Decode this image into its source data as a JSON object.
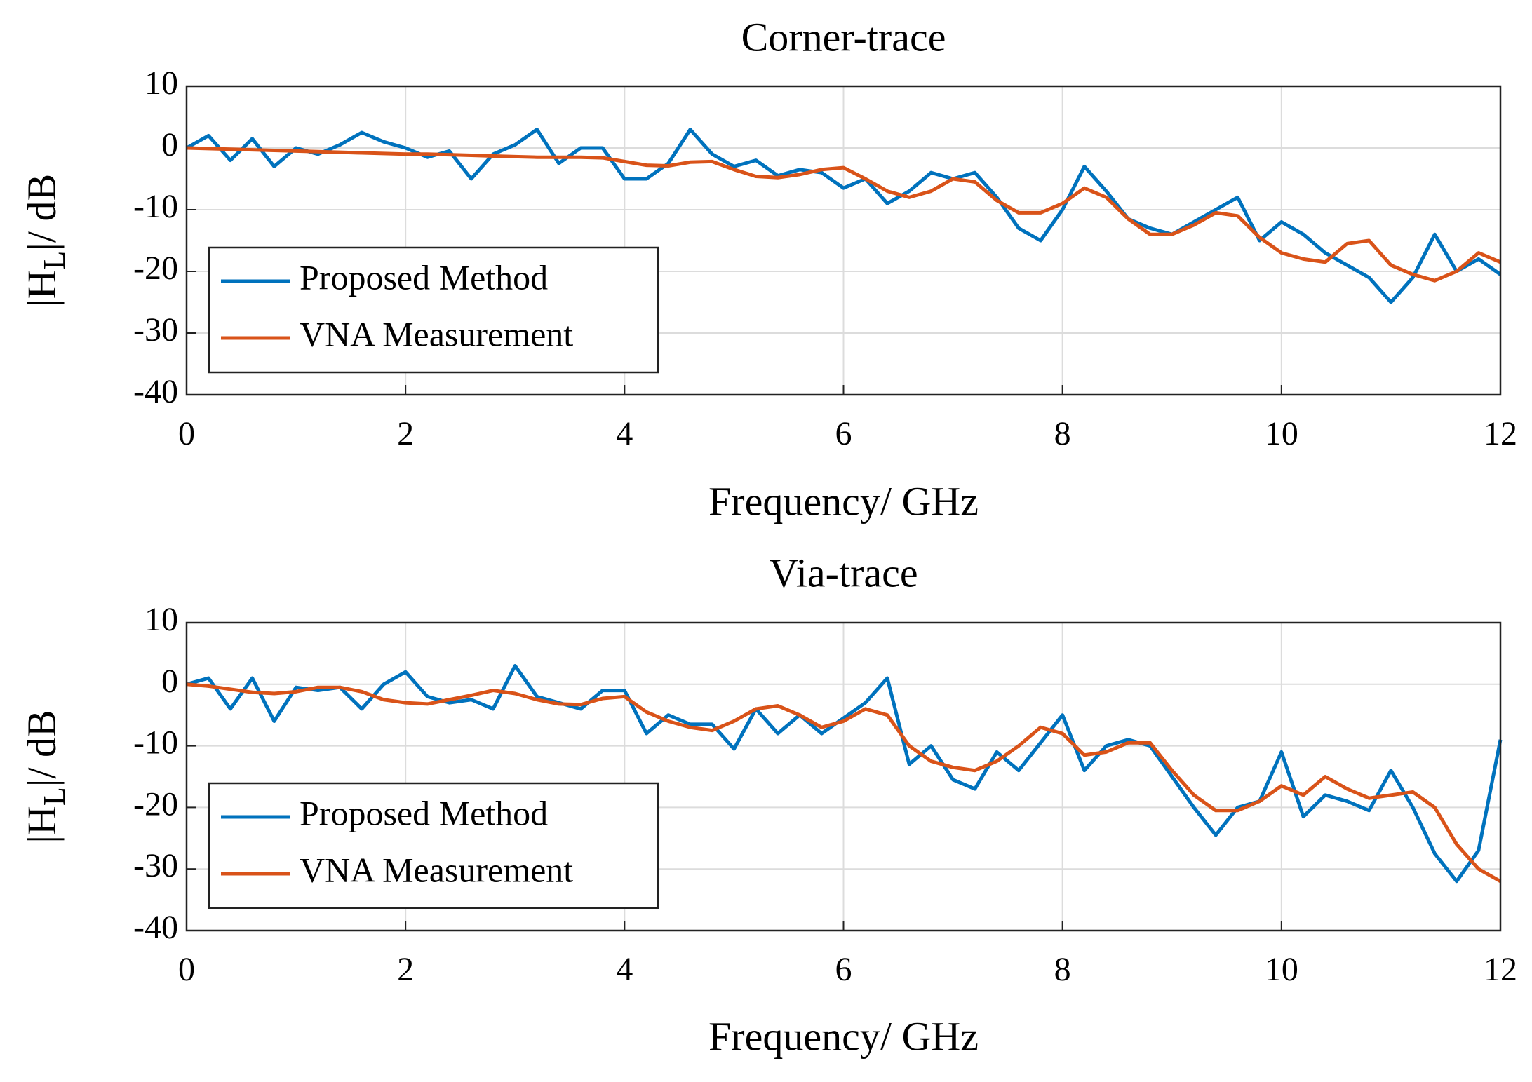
{
  "chart_data": [
    {
      "type": "line",
      "title": "Corner-trace",
      "xlabel": "Frequency/ GHz",
      "ylabel": {
        "main": "|H",
        "sub": "L",
        "rest": "|/ dB"
      },
      "x": [
        0,
        0.2,
        0.4,
        0.6,
        0.8,
        1,
        1.2,
        1.4,
        1.6,
        1.8,
        2,
        2.2,
        2.4,
        2.6,
        2.8,
        3,
        3.2,
        3.4,
        3.6,
        3.8,
        4,
        4.2,
        4.4,
        4.6,
        4.8,
        5,
        5.2,
        5.4,
        5.6,
        5.8,
        6,
        6.2,
        6.4,
        6.6,
        6.8,
        7,
        7.2,
        7.4,
        7.6,
        7.8,
        8,
        8.2,
        8.4,
        8.6,
        8.8,
        9,
        9.2,
        9.4,
        9.6,
        9.8,
        10,
        10.2,
        10.4,
        10.6,
        10.8,
        11,
        11.2,
        11.4,
        11.6,
        11.8,
        12
      ],
      "series": [
        {
          "name": "Proposed Method",
          "color": "#0072BD",
          "values": [
            0,
            2,
            -2,
            1.5,
            -3,
            0,
            -1,
            0.5,
            2.5,
            1,
            0,
            -1.5,
            -0.5,
            -5,
            -1,
            0.5,
            3,
            -2.5,
            0,
            0,
            -5,
            -5,
            -2.5,
            3,
            -1,
            -3,
            -2,
            -4.5,
            -3.5,
            -4,
            -6.5,
            -5,
            -9,
            -7,
            -4,
            -5,
            -4,
            -8,
            -13,
            -15,
            -10,
            -3,
            -7,
            -11.5,
            -13,
            -14,
            -12,
            -10,
            -8,
            -15,
            -12,
            -14,
            -17,
            -19,
            -21,
            -25,
            -21,
            -14,
            -20,
            -18,
            -20.5
          ]
        },
        {
          "name": "VNA Measurement",
          "color": "#D95319",
          "values": [
            0,
            -0.1,
            -0.2,
            -0.3,
            -0.4,
            -0.5,
            -0.6,
            -0.7,
            -0.8,
            -0.9,
            -1,
            -1,
            -1.1,
            -1.2,
            -1.3,
            -1.4,
            -1.5,
            -1.5,
            -1.5,
            -1.6,
            -2.2,
            -2.8,
            -2.9,
            -2.3,
            -2.2,
            -3.5,
            -4.6,
            -4.8,
            -4.3,
            -3.5,
            -3.2,
            -5,
            -7,
            -8,
            -7,
            -5,
            -5.5,
            -8.5,
            -10.5,
            -10.5,
            -9,
            -6.5,
            -8,
            -11.5,
            -14,
            -14,
            -12.5,
            -10.5,
            -11,
            -14.5,
            -17,
            -18,
            -18.5,
            -15.5,
            -15,
            -19,
            -20.5,
            -21.5,
            -20,
            -17,
            -18.5
          ]
        }
      ],
      "xlim": [
        0,
        12
      ],
      "xticks": [
        0,
        2,
        4,
        6,
        8,
        10,
        12
      ],
      "ylim": [
        -40,
        10
      ],
      "yticks": [
        -40,
        -30,
        -20,
        -10,
        0,
        10
      ],
      "grid": true,
      "legend": "lower left"
    },
    {
      "type": "line",
      "title": "Via-trace",
      "xlabel": "Frequency/ GHz",
      "ylabel": {
        "main": "|H",
        "sub": "L",
        "rest": "|/ dB"
      },
      "x": [
        0,
        0.2,
        0.4,
        0.6,
        0.8,
        1,
        1.2,
        1.4,
        1.6,
        1.8,
        2,
        2.2,
        2.4,
        2.6,
        2.8,
        3,
        3.2,
        3.4,
        3.6,
        3.8,
        4,
        4.2,
        4.4,
        4.6,
        4.8,
        5,
        5.2,
        5.4,
        5.6,
        5.8,
        6,
        6.2,
        6.4,
        6.6,
        6.8,
        7,
        7.2,
        7.4,
        7.6,
        7.8,
        8,
        8.2,
        8.4,
        8.6,
        8.8,
        9,
        9.2,
        9.4,
        9.6,
        9.8,
        10,
        10.2,
        10.4,
        10.6,
        10.8,
        11,
        11.2,
        11.4,
        11.6,
        11.8,
        12
      ],
      "series": [
        {
          "name": "Proposed Method",
          "color": "#0072BD",
          "values": [
            0,
            1,
            -4,
            1,
            -6,
            -0.5,
            -1,
            -0.5,
            -4,
            0,
            2,
            -2,
            -3,
            -2.5,
            -4,
            3,
            -2,
            -3,
            -4,
            -1,
            -1,
            -8,
            -5,
            -6.5,
            -6.5,
            -10.5,
            -4,
            -8,
            -5,
            -8,
            -5.5,
            -3,
            1,
            -13,
            -10,
            -15.5,
            -17,
            -11,
            -14,
            -9.5,
            -5,
            -14,
            -10,
            -9,
            -10,
            -15,
            -20,
            -24.5,
            -20,
            -19,
            -11,
            -21.5,
            -18,
            -19,
            -20.5,
            -14,
            -20,
            -27.5,
            -32,
            -27,
            -9
          ]
        },
        {
          "name": "VNA Measurement",
          "color": "#D95319",
          "values": [
            0,
            -0.3,
            -0.8,
            -1.3,
            -1.5,
            -1.2,
            -0.5,
            -0.5,
            -1.2,
            -2.5,
            -3,
            -3.2,
            -2.5,
            -1.8,
            -1,
            -1.5,
            -2.5,
            -3.2,
            -3.3,
            -2.3,
            -2,
            -4.5,
            -6,
            -7,
            -7.5,
            -6,
            -4,
            -3.5,
            -5,
            -7,
            -6,
            -4,
            -5,
            -10,
            -12.5,
            -13.5,
            -14,
            -12.5,
            -10,
            -7,
            -8,
            -11.5,
            -11,
            -9.5,
            -9.5,
            -14,
            -18,
            -20.5,
            -20.5,
            -19,
            -16.5,
            -18,
            -15,
            -17,
            -18.5,
            -18,
            -17.5,
            -20,
            -26,
            -30,
            -32
          ]
        }
      ],
      "xlim": [
        0,
        12
      ],
      "xticks": [
        0,
        2,
        4,
        6,
        8,
        10,
        12
      ],
      "ylim": [
        -40,
        10
      ],
      "yticks": [
        -40,
        -30,
        -20,
        -10,
        0,
        10
      ],
      "grid": true,
      "legend": "lower left"
    }
  ]
}
